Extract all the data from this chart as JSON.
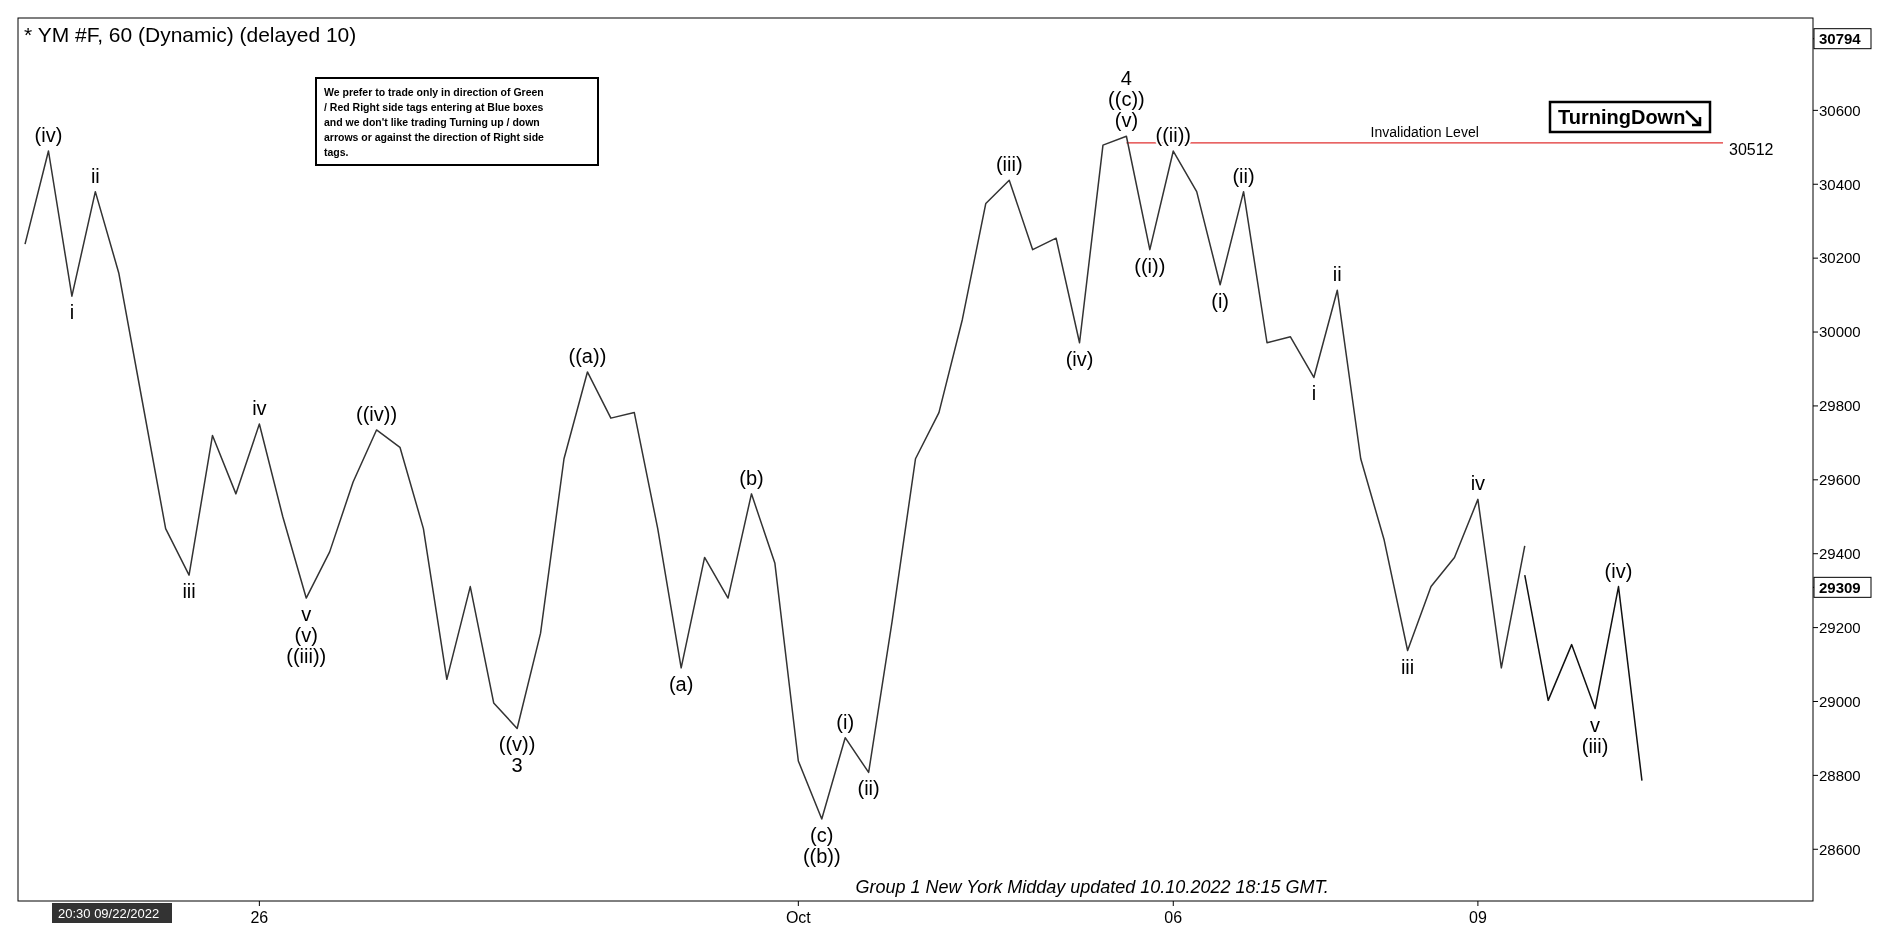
{
  "chart_data": {
    "type": "line",
    "title": "* YM #F, 60 (Dynamic) (delayed 10)",
    "categories": [
      null,
      null,
      null,
      null,
      null,
      null,
      null,
      null,
      null,
      null,
      "26",
      null,
      null,
      null,
      null,
      null,
      null,
      null,
      null,
      null,
      null,
      null,
      null,
      null,
      null,
      null,
      null,
      null,
      null,
      null,
      null,
      null,
      null,
      "Oct",
      null,
      null,
      null,
      null,
      null,
      null,
      null,
      null,
      null,
      null,
      null,
      null,
      null,
      null,
      null,
      "06",
      null,
      null,
      null,
      null,
      null,
      null,
      null,
      null,
      null,
      null,
      null,
      null,
      "09",
      null,
      null,
      null,
      null,
      null,
      null,
      null,
      null,
      null,
      null,
      null,
      null,
      null,
      null
    ],
    "series": [
      {
        "color": "#333333",
        "values": [
          30238,
          30490,
          30097,
          30380,
          30160,
          29814,
          29468,
          29342,
          29720,
          29562,
          29751,
          29500,
          29280,
          29405,
          29594,
          29735,
          29688,
          29468,
          29060,
          29311,
          28996,
          28927,
          29185,
          29657,
          29892,
          29767,
          29782,
          29468,
          29091,
          29390,
          29280,
          29562,
          29374,
          28839,
          28682,
          28902,
          28808,
          29216,
          29657,
          29782,
          30034,
          30348,
          30411,
          30223,
          30254,
          29971,
          30506,
          30530,
          30223,
          30490,
          30380,
          30128,
          30380,
          29971,
          29987,
          29877,
          30113,
          29657,
          29437,
          29138,
          29311,
          29390,
          29547,
          29091,
          29421,
          null,
          null,
          null,
          null,
          null,
          null,
          null,
          null,
          null,
          null,
          null,
          null
        ]
      },
      {
        "color": "#111111",
        "values": [
          null,
          null,
          null,
          null,
          null,
          null,
          null,
          null,
          null,
          null,
          null,
          null,
          null,
          null,
          null,
          null,
          null,
          null,
          null,
          null,
          null,
          null,
          null,
          null,
          null,
          null,
          null,
          null,
          null,
          null,
          null,
          null,
          null,
          null,
          null,
          null,
          null,
          null,
          null,
          null,
          null,
          null,
          null,
          null,
          null,
          null,
          null,
          null,
          null,
          null,
          null,
          null,
          null,
          null,
          null,
          null,
          null,
          null,
          null,
          null,
          null,
          null,
          null,
          null,
          29342,
          29003,
          29154,
          28981,
          29311,
          28786,
          null,
          null,
          null,
          null,
          null,
          null,
          null
        ]
      }
    ],
    "ylim": [
      28460,
      30850
    ],
    "yticks": [
      28600,
      28800,
      29000,
      29200,
      29400,
      29600,
      29800,
      30000,
      30200,
      30400,
      30600,
      {
        "value": 29309,
        "label": "29309"
      },
      {
        "value": 30794,
        "label": "30794"
      }
    ],
    "ref_lines": [
      {
        "axis": "y",
        "value": 30512,
        "label": "Invalidation Level",
        "color": "#e03030"
      }
    ],
    "annotations": [
      "We prefer to trade only in direction of Green / Red Right side tags entering at Blue boxes and we don't like trading Turning up / down arrows or against the direction of Right side tags.",
      "TurningDown",
      "Group 1 New York Midday updated 10.10.2022 18:15 GMT.",
      "20:30 09/22/2022",
      "30512",
      "(iv)",
      "ii",
      "i",
      "iii",
      "iv",
      "v",
      "(v)",
      "((iii))",
      "((iv))",
      "((a))",
      "((v))",
      "3",
      "(a)",
      "(b)",
      "(c)",
      "((b))",
      "(i)",
      "(ii)",
      "(iii)",
      "(iv)",
      "4",
      "((c))",
      "(v)",
      "((i))",
      "((ii))",
      "(ii)",
      "(i)",
      "ii",
      "i",
      "iii",
      "iv",
      "v",
      "(iii)",
      "(iv)"
    ],
    "grid": false,
    "line_style": "solid",
    "marker": "none"
  }
}
